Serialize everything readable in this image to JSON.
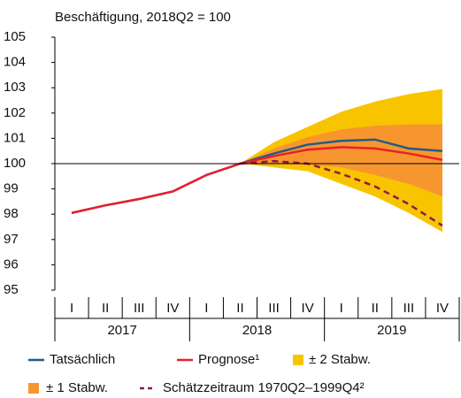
{
  "chart_data": {
    "type": "line",
    "ylabel": "Beschäftigung, 2018Q2 = 100",
    "categories": [
      "I",
      "II",
      "III",
      "IV",
      "I",
      "II",
      "III",
      "IV",
      "I",
      "II",
      "III",
      "IV"
    ],
    "years": [
      "2017",
      "2018",
      "2019"
    ],
    "ylim": [
      95,
      105
    ],
    "yticks": [
      95,
      96,
      97,
      98,
      99,
      100,
      101,
      102,
      103,
      104,
      105
    ],
    "reference_line": 100,
    "bands": [
      {
        "name": "± 2 Stabw.",
        "color": "#f8c400",
        "upper": [
          null,
          null,
          null,
          null,
          null,
          100,
          100.85,
          101.45,
          102.05,
          102.45,
          102.75,
          102.95
        ],
        "lower": [
          null,
          null,
          null,
          null,
          null,
          100,
          99.85,
          99.7,
          99.2,
          98.7,
          98.05,
          97.3
        ]
      },
      {
        "name": "± 1 Stabw.",
        "color": "#f7962f",
        "upper": [
          null,
          null,
          null,
          null,
          null,
          100,
          100.6,
          101.05,
          101.35,
          101.5,
          101.55,
          101.55
        ],
        "lower": [
          null,
          null,
          null,
          null,
          null,
          100,
          100.0,
          99.95,
          99.85,
          99.55,
          99.2,
          98.7
        ]
      }
    ],
    "series": [
      {
        "name": "Tatsächlich",
        "color": "#1f5c8a",
        "dash": false,
        "values": [
          98.05,
          98.35,
          98.6,
          98.9,
          99.55,
          100,
          100.4,
          100.75,
          100.9,
          100.95,
          100.6,
          100.5
        ]
      },
      {
        "name": "Prognose¹",
        "color": "#e8202a",
        "dash": false,
        "values": [
          98.05,
          98.35,
          98.6,
          98.9,
          99.55,
          100,
          100.3,
          100.55,
          100.65,
          100.6,
          100.4,
          100.15
        ]
      },
      {
        "name": "Schätzzeitraum 1970Q2–1999Q4²",
        "color": "#8b1c4a",
        "dash": true,
        "values": [
          null,
          null,
          null,
          null,
          null,
          100,
          100.1,
          100.0,
          99.6,
          99.1,
          98.4,
          97.55
        ]
      }
    ]
  }
}
